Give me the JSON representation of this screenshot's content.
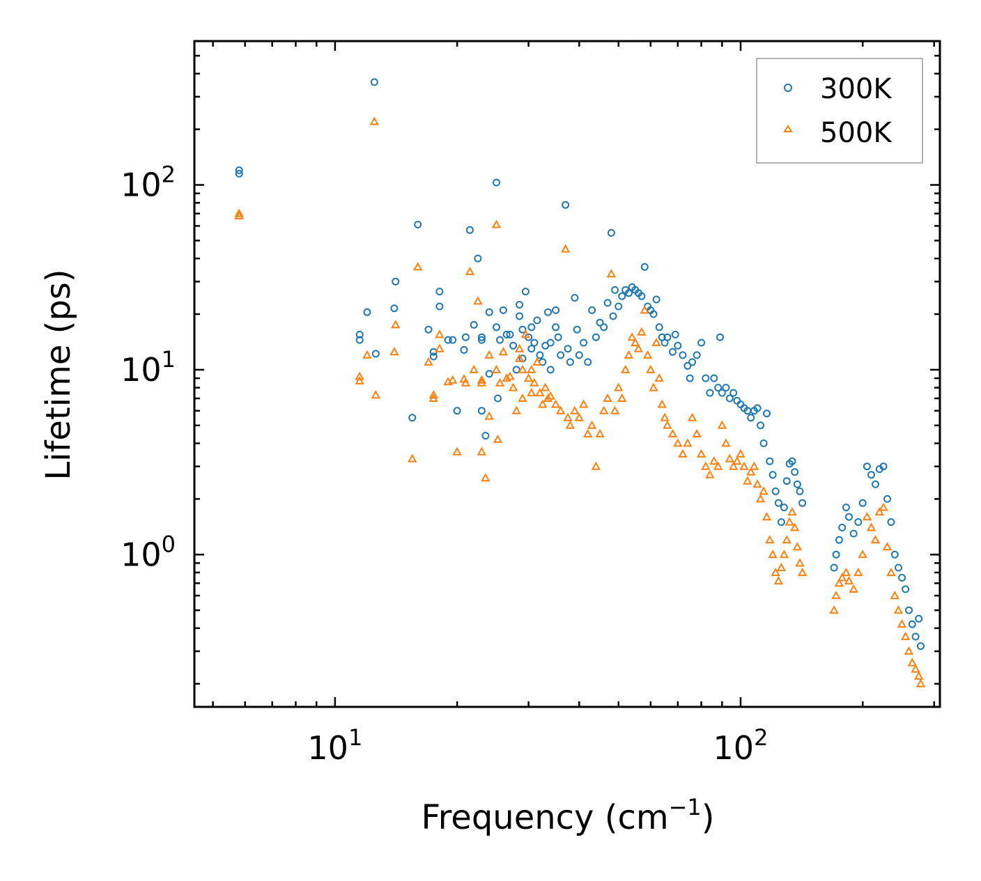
{
  "chart_data": {
    "type": "scatter",
    "title": "",
    "xlabel": "Frequency (cm",
    "xlabel_sup": "−1",
    "xlabel_end": ")",
    "ylabel": "Lifetime (ps)",
    "xscale": "log",
    "yscale": "log",
    "xlim": [
      4.5,
      310
    ],
    "ylim": [
      0.15,
      600
    ],
    "x_ticks": [
      {
        "value": 10,
        "base": "10",
        "exp": "1"
      },
      {
        "value": 100,
        "base": "10",
        "exp": "2"
      }
    ],
    "y_ticks": [
      {
        "value": 1,
        "base": "10",
        "exp": "0"
      },
      {
        "value": 10,
        "base": "10",
        "exp": "1"
      },
      {
        "value": 100,
        "base": "10",
        "exp": "2"
      }
    ],
    "legend_position": "top-right",
    "series": [
      {
        "name": "300K",
        "marker": "circle",
        "color": "#1f77b4",
        "points": [
          [
            5.8,
            120
          ],
          [
            5.8,
            115
          ],
          [
            12.5,
            360
          ],
          [
            11.5,
            15.5
          ],
          [
            11.5,
            14.5
          ],
          [
            12,
            20.5
          ],
          [
            12.6,
            12.2
          ],
          [
            14,
            21.5
          ],
          [
            14.1,
            30
          ],
          [
            15.5,
            5.5
          ],
          [
            16,
            61
          ],
          [
            18.1,
            26.5
          ],
          [
            18.1,
            22
          ],
          [
            17.5,
            12.5
          ],
          [
            17.5,
            11.8
          ],
          [
            19,
            14.5
          ],
          [
            19.5,
            14.5
          ],
          [
            17,
            16.5
          ],
          [
            20,
            6
          ],
          [
            20.8,
            12.8
          ],
          [
            21,
            15
          ],
          [
            21.5,
            57
          ],
          [
            22,
            17.5
          ],
          [
            22.5,
            40
          ],
          [
            23,
            15
          ],
          [
            23,
            14.5
          ],
          [
            23,
            6
          ],
          [
            23.5,
            4.4
          ],
          [
            24,
            20.5
          ],
          [
            24,
            9.5
          ],
          [
            25,
            103
          ],
          [
            25,
            17
          ],
          [
            25.2,
            7
          ],
          [
            25.5,
            14.5
          ],
          [
            26,
            21
          ],
          [
            26.5,
            15.5
          ],
          [
            27,
            15.5
          ],
          [
            27.5,
            13.5
          ],
          [
            28,
            10
          ],
          [
            28.5,
            22.5
          ],
          [
            28.5,
            19.5
          ],
          [
            29,
            16.5
          ],
          [
            29,
            11.5
          ],
          [
            29.5,
            26.5
          ],
          [
            30,
            15
          ],
          [
            30.5,
            13
          ],
          [
            30.5,
            17
          ],
          [
            31,
            14
          ],
          [
            31.5,
            18.5
          ],
          [
            32,
            12
          ],
          [
            32.5,
            11
          ],
          [
            33,
            13.5
          ],
          [
            33.5,
            20.5
          ],
          [
            34,
            14
          ],
          [
            34,
            10
          ],
          [
            35,
            21
          ],
          [
            35,
            17
          ],
          [
            35.5,
            15
          ],
          [
            36,
            12
          ],
          [
            37,
            78
          ],
          [
            37.5,
            13
          ],
          [
            38,
            11
          ],
          [
            39,
            24.5
          ],
          [
            39.5,
            16.5
          ],
          [
            40,
            12
          ],
          [
            41,
            14
          ],
          [
            42,
            11
          ],
          [
            43,
            21
          ],
          [
            44,
            15
          ],
          [
            45,
            18
          ],
          [
            46,
            17
          ],
          [
            47,
            23
          ],
          [
            48,
            55
          ],
          [
            48.5,
            19.5
          ],
          [
            49,
            27
          ],
          [
            50,
            22
          ],
          [
            51,
            25
          ],
          [
            52,
            27
          ],
          [
            53,
            26
          ],
          [
            54,
            28
          ],
          [
            55,
            27
          ],
          [
            56,
            26
          ],
          [
            57,
            25
          ],
          [
            58,
            36
          ],
          [
            59,
            22
          ],
          [
            60,
            21
          ],
          [
            61,
            20
          ],
          [
            62,
            24
          ],
          [
            63,
            17
          ],
          [
            64,
            15
          ],
          [
            65,
            14
          ],
          [
            66,
            15
          ],
          [
            68,
            12.5
          ],
          [
            69,
            15.5
          ],
          [
            70,
            13.5
          ],
          [
            72,
            12
          ],
          [
            74,
            10.5
          ],
          [
            75,
            9
          ],
          [
            76,
            11
          ],
          [
            78,
            12
          ],
          [
            80,
            14
          ],
          [
            82,
            9
          ],
          [
            84,
            7.5
          ],
          [
            86,
            9
          ],
          [
            88,
            8
          ],
          [
            89,
            15
          ],
          [
            90,
            7.5
          ],
          [
            92,
            8
          ],
          [
            94,
            7
          ],
          [
            96,
            7.5
          ],
          [
            98,
            6.8
          ],
          [
            100,
            6.5
          ],
          [
            102,
            6.2
          ],
          [
            104,
            6
          ],
          [
            106,
            5.5
          ],
          [
            108,
            6
          ],
          [
            110,
            6.2
          ],
          [
            112,
            5
          ],
          [
            114,
            4
          ],
          [
            116,
            5.8
          ],
          [
            118,
            3.2
          ],
          [
            120,
            2.7
          ],
          [
            122,
            2.2
          ],
          [
            124,
            1.9
          ],
          [
            126,
            1.5
          ],
          [
            128,
            1.8
          ],
          [
            130,
            2.5
          ],
          [
            132,
            3.1
          ],
          [
            134,
            3.2
          ],
          [
            136,
            2.8
          ],
          [
            138,
            2.4
          ],
          [
            140,
            2.2
          ],
          [
            142,
            1.9
          ],
          [
            170,
            0.85
          ],
          [
            172,
            1.0
          ],
          [
            175,
            1.2
          ],
          [
            178,
            1.4
          ],
          [
            182,
            1.8
          ],
          [
            185,
            1.6
          ],
          [
            190,
            1.3
          ],
          [
            195,
            1.5
          ],
          [
            200,
            1.9
          ],
          [
            205,
            3.0
          ],
          [
            210,
            2.7
          ],
          [
            215,
            2.4
          ],
          [
            220,
            2.9
          ],
          [
            225,
            3.0
          ],
          [
            230,
            2.0
          ],
          [
            235,
            1.5
          ],
          [
            240,
            1.0
          ],
          [
            245,
            0.85
          ],
          [
            250,
            0.75
          ],
          [
            255,
            0.65
          ],
          [
            260,
            0.5
          ],
          [
            265,
            0.42
          ],
          [
            270,
            0.36
          ],
          [
            275,
            0.45
          ],
          [
            278,
            0.32
          ]
        ]
      },
      {
        "name": "500K",
        "marker": "triangle",
        "color": "#ff7f0e",
        "points": [
          [
            5.8,
            70
          ],
          [
            5.8,
            68
          ],
          [
            12.5,
            220
          ],
          [
            11.5,
            9.2
          ],
          [
            11.5,
            8.7
          ],
          [
            12,
            12
          ],
          [
            12.6,
            7.3
          ],
          [
            14,
            12.5
          ],
          [
            14.1,
            17.5
          ],
          [
            15.5,
            3.3
          ],
          [
            16,
            36
          ],
          [
            18.1,
            15.5
          ],
          [
            18.1,
            13
          ],
          [
            17.5,
            7.3
          ],
          [
            17.5,
            7.0
          ],
          [
            19,
            8.6
          ],
          [
            19.5,
            8.8
          ],
          [
            17,
            11
          ],
          [
            20,
            3.6
          ],
          [
            20.8,
            8.9
          ],
          [
            21,
            8.5
          ],
          [
            21.5,
            34
          ],
          [
            22,
            10
          ],
          [
            22.5,
            23.5
          ],
          [
            23,
            8.8
          ],
          [
            23,
            8.5
          ],
          [
            23,
            3.6
          ],
          [
            23.5,
            2.6
          ],
          [
            24,
            12
          ],
          [
            24,
            5.6
          ],
          [
            25,
            61
          ],
          [
            25,
            10
          ],
          [
            25.2,
            4.2
          ],
          [
            25.5,
            8.5
          ],
          [
            26,
            12.5
          ],
          [
            26.5,
            9
          ],
          [
            27,
            9.2
          ],
          [
            27.5,
            8
          ],
          [
            28,
            6
          ],
          [
            28.5,
            13
          ],
          [
            28.5,
            11.5
          ],
          [
            29,
            10
          ],
          [
            29,
            7
          ],
          [
            29.5,
            15.5
          ],
          [
            30,
            9
          ],
          [
            30.5,
            7.5
          ],
          [
            30.5,
            10
          ],
          [
            31,
            8.5
          ],
          [
            31.5,
            11
          ],
          [
            32,
            7.5
          ],
          [
            32.5,
            6.5
          ],
          [
            33,
            8
          ],
          [
            33.5,
            7
          ],
          [
            34,
            7.2
          ],
          [
            35,
            6.5
          ],
          [
            36,
            6
          ],
          [
            37,
            45
          ],
          [
            37.5,
            5.5
          ],
          [
            38,
            5
          ],
          [
            39,
            6
          ],
          [
            40,
            5.5
          ],
          [
            41,
            6.5
          ],
          [
            42,
            4.5
          ],
          [
            43,
            5
          ],
          [
            44,
            3.0
          ],
          [
            45,
            4.5
          ],
          [
            46,
            6
          ],
          [
            47,
            7
          ],
          [
            48,
            33
          ],
          [
            49,
            6
          ],
          [
            50,
            8
          ],
          [
            51,
            7
          ],
          [
            52,
            10
          ],
          [
            53,
            12
          ],
          [
            54,
            15
          ],
          [
            55,
            14
          ],
          [
            56,
            13
          ],
          [
            57,
            16
          ],
          [
            58,
            21
          ],
          [
            59,
            12
          ],
          [
            60,
            10
          ],
          [
            61,
            8
          ],
          [
            62,
            14
          ],
          [
            63,
            9
          ],
          [
            64,
            6.5
          ],
          [
            65,
            5.5
          ],
          [
            66,
            5
          ],
          [
            68,
            4.5
          ],
          [
            70,
            4
          ],
          [
            72,
            3.5
          ],
          [
            74,
            4
          ],
          [
            76,
            5.5
          ],
          [
            78,
            4.5
          ],
          [
            80,
            3.5
          ],
          [
            82,
            3
          ],
          [
            84,
            2.7
          ],
          [
            86,
            3.2
          ],
          [
            88,
            3
          ],
          [
            90,
            5
          ],
          [
            92,
            4
          ],
          [
            94,
            3.3
          ],
          [
            96,
            3
          ],
          [
            98,
            3.2
          ],
          [
            100,
            3.5
          ],
          [
            102,
            3
          ],
          [
            104,
            2.5
          ],
          [
            106,
            2.8
          ],
          [
            108,
            3
          ],
          [
            110,
            2.4
          ],
          [
            112,
            2
          ],
          [
            114,
            2.2
          ],
          [
            116,
            1.6
          ],
          [
            118,
            1.2
          ],
          [
            120,
            1.0
          ],
          [
            122,
            0.8
          ],
          [
            124,
            0.72
          ],
          [
            126,
            0.85
          ],
          [
            128,
            1.0
          ],
          [
            130,
            1.2
          ],
          [
            132,
            1.5
          ],
          [
            134,
            1.7
          ],
          [
            136,
            1.4
          ],
          [
            138,
            1.1
          ],
          [
            140,
            0.9
          ],
          [
            142,
            0.8
          ],
          [
            170,
            0.5
          ],
          [
            172,
            0.6
          ],
          [
            175,
            0.7
          ],
          [
            178,
            0.75
          ],
          [
            182,
            0.8
          ],
          [
            185,
            0.72
          ],
          [
            190,
            0.65
          ],
          [
            195,
            0.8
          ],
          [
            200,
            1.0
          ],
          [
            205,
            1.6
          ],
          [
            210,
            1.4
          ],
          [
            215,
            1.2
          ],
          [
            220,
            1.7
          ],
          [
            225,
            1.8
          ],
          [
            230,
            1.1
          ],
          [
            235,
            0.8
          ],
          [
            240,
            0.6
          ],
          [
            245,
            0.5
          ],
          [
            250,
            0.42
          ],
          [
            255,
            0.36
          ],
          [
            260,
            0.3
          ],
          [
            265,
            0.26
          ],
          [
            270,
            0.24
          ],
          [
            275,
            0.22
          ],
          [
            278,
            0.2
          ]
        ]
      }
    ]
  }
}
